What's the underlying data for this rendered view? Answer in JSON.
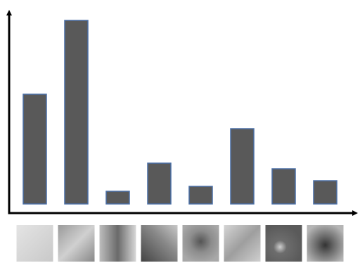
{
  "chart_data": {
    "type": "bar",
    "values": [
      156,
      261,
      18,
      58,
      25,
      107,
      50,
      33
    ],
    "color": "#595959",
    "edge_color": "#4a6fa5",
    "ylim": [
      0,
      270
    ]
  }
}
